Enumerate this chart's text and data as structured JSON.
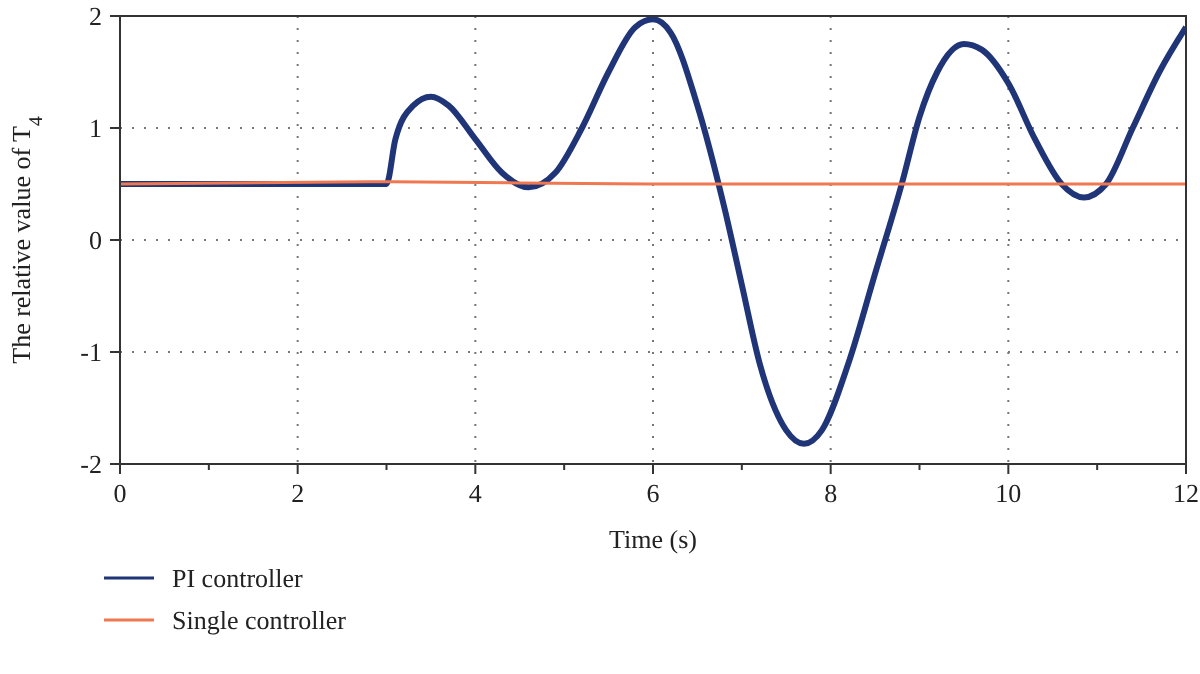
{
  "chart_data": {
    "type": "line",
    "xlabel": "Time (s)",
    "ylabel": "The relative value of T$_{4}$",
    "xlim": [
      0,
      12
    ],
    "ylim": [
      -2,
      2
    ],
    "xticks": [
      0,
      {
        "value": 1,
        "label": null
      },
      2,
      {
        "value": 3,
        "label": null
      },
      4,
      {
        "value": 5,
        "label": null
      },
      6,
      {
        "value": 7,
        "label": null
      },
      8,
      {
        "value": 9,
        "label": null
      },
      10,
      {
        "value": 11,
        "label": null
      },
      12
    ],
    "yticks": [
      -2,
      -1,
      0,
      1,
      2
    ],
    "grid": true,
    "legend": "bottom left",
    "line_style": "solid",
    "marker": "none",
    "series": [
      {
        "name": "PI controller",
        "color": "#1f3577",
        "x": [
          0,
          1,
          2,
          3.0,
          3.1,
          3.3,
          3.5,
          3.7,
          4.0,
          4.3,
          4.6,
          4.9,
          5.2,
          5.5,
          5.8,
          6.0,
          6.2,
          6.5,
          6.8,
          7.0,
          7.2,
          7.5,
          7.7,
          7.9,
          8.2,
          8.5,
          8.8,
          9.0,
          9.2,
          9.5,
          9.7,
          10.0,
          10.3,
          10.6,
          10.85,
          11.1,
          11.4,
          11.7,
          12
        ],
        "values": [
          0.5,
          0.5,
          0.5,
          0.5,
          0.9,
          1.2,
          1.28,
          1.2,
          0.9,
          0.6,
          0.47,
          0.6,
          1.0,
          1.5,
          1.9,
          1.97,
          1.85,
          1.2,
          0.3,
          -0.4,
          -1.1,
          -1.7,
          -1.82,
          -1.7,
          -1.1,
          -0.3,
          0.5,
          1.1,
          1.5,
          1.75,
          1.7,
          1.4,
          0.9,
          0.5,
          0.38,
          0.5,
          1.0,
          1.5,
          1.9
        ]
      },
      {
        "name": "Single controller",
        "color": "#f07850",
        "x": [
          0,
          3,
          6,
          9,
          12
        ],
        "values": [
          0.5,
          0.52,
          0.5,
          0.5,
          0.5
        ]
      }
    ]
  }
}
